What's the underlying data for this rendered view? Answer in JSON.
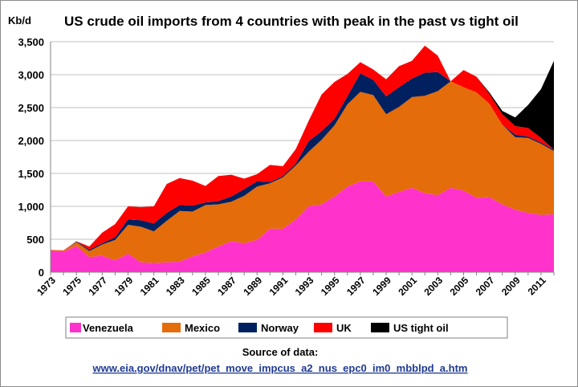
{
  "chart_data": {
    "type": "area",
    "title": "US crude oil imports from 4 countries with peak in the past vs tight oil",
    "ylabel": "Kb/d",
    "xlabel": "",
    "ylim": [
      0,
      3500
    ],
    "yticks": [
      "0",
      "500",
      "1,000",
      "1,500",
      "2,000",
      "2,500",
      "3,000",
      "3,500"
    ],
    "xtick_labels": [
      "1973",
      "1975",
      "1977",
      "1979",
      "1981",
      "1983",
      "1985",
      "1987",
      "1989",
      "1991",
      "1993",
      "1995",
      "1997",
      "1999",
      "2001",
      "2003",
      "2005",
      "2007",
      "2009",
      "2011"
    ],
    "grid": true,
    "legend_position": "bottom",
    "x": [
      1973,
      1974,
      1975,
      1976,
      1977,
      1978,
      1979,
      1980,
      1981,
      1982,
      1983,
      1984,
      1985,
      1986,
      1987,
      1988,
      1989,
      1990,
      1991,
      1992,
      1993,
      1994,
      1995,
      1996,
      1997,
      1998,
      1999,
      2000,
      2001,
      2002,
      2003,
      2004,
      2005,
      2006,
      2007,
      2008,
      2009,
      2010,
      2011,
      2012
    ],
    "series": [
      {
        "name": "Venezuela",
        "color": "#ff33cc",
        "values": [
          330,
          310,
          400,
          230,
          250,
          180,
          280,
          150,
          140,
          150,
          160,
          240,
          300,
          390,
          470,
          440,
          490,
          660,
          660,
          800,
          1000,
          1030,
          1150,
          1300,
          1380,
          1380,
          1150,
          1220,
          1280,
          1200,
          1170,
          1280,
          1240,
          1130,
          1140,
          1030,
          950,
          900,
          870,
          880
        ]
      },
      {
        "name": "Mexico",
        "color": "#e46c0a",
        "values": [
          10,
          10,
          60,
          90,
          170,
          310,
          440,
          540,
          480,
          630,
          770,
          680,
          720,
          640,
          600,
          720,
          810,
          690,
          780,
          820,
          830,
          980,
          1080,
          1250,
          1360,
          1310,
          1250,
          1290,
          1380,
          1480,
          1580,
          1620,
          1570,
          1600,
          1420,
          1210,
          1100,
          1140,
          1080,
          960
        ]
      },
      {
        "name": "Norway",
        "color": "#002060",
        "values": [
          0,
          0,
          10,
          20,
          20,
          40,
          80,
          100,
          120,
          120,
          90,
          90,
          40,
          50,
          80,
          100,
          80,
          20,
          20,
          30,
          160,
          130,
          100,
          120,
          280,
          230,
          270,
          300,
          280,
          350,
          290,
          0,
          0,
          0,
          0,
          0,
          40,
          20,
          20,
          20
        ]
      },
      {
        "name": "UK",
        "color": "#ff0000",
        "values": [
          0,
          10,
          0,
          50,
          160,
          200,
          200,
          200,
          260,
          440,
          410,
          380,
          250,
          380,
          330,
          160,
          110,
          260,
          150,
          220,
          310,
          560,
          560,
          340,
          170,
          160,
          260,
          320,
          270,
          410,
          250,
          0,
          260,
          240,
          150,
          160,
          130,
          130,
          70,
          0
        ]
      },
      {
        "name": "US tight oil",
        "color": "#000000",
        "values": [
          0,
          0,
          0,
          0,
          0,
          0,
          0,
          0,
          0,
          0,
          0,
          0,
          0,
          0,
          0,
          0,
          0,
          0,
          0,
          0,
          0,
          0,
          0,
          0,
          0,
          0,
          0,
          0,
          0,
          0,
          0,
          0,
          0,
          0,
          20,
          50,
          130,
          350,
          740,
          1350
        ]
      }
    ]
  },
  "source": {
    "label": "Source of data:",
    "url": "www.eia.gov/dnav/pet/pet_move_impcus_a2_nus_epc0_im0_mbblpd_a.htm"
  }
}
